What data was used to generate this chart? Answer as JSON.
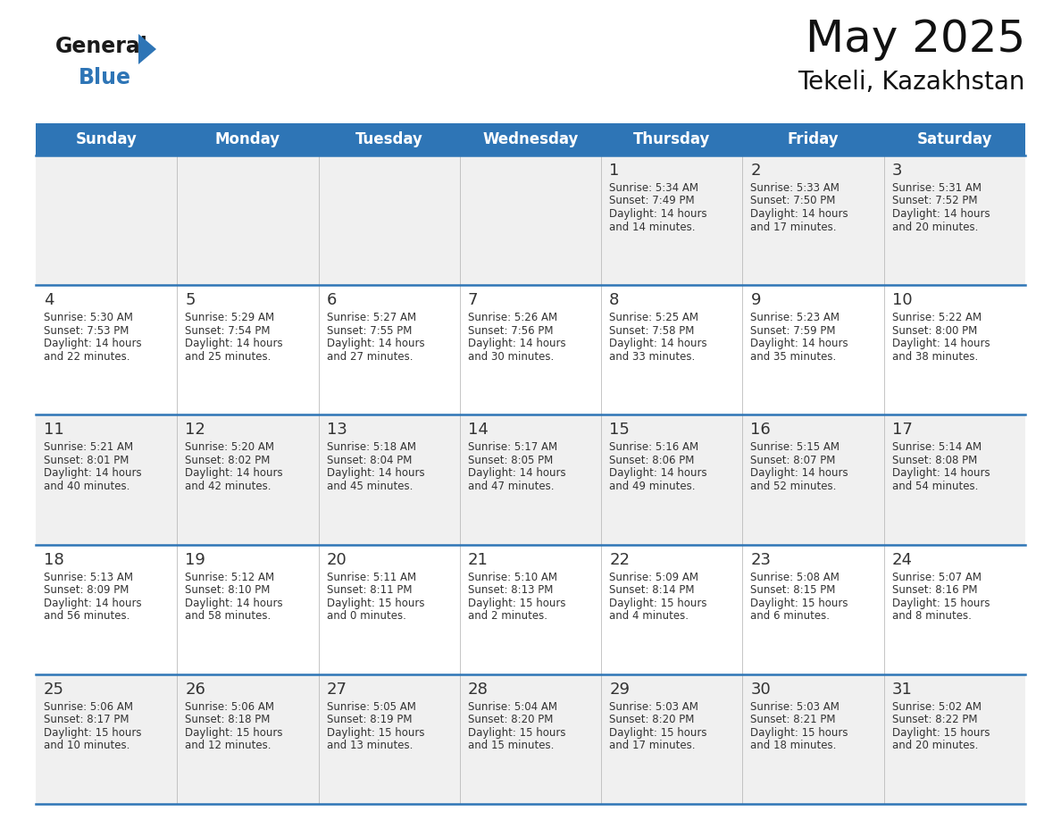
{
  "title": "May 2025",
  "subtitle": "Tekeli, Kazakhstan",
  "header_color": "#2E75B6",
  "header_text_color": "#FFFFFF",
  "days_of_week": [
    "Sunday",
    "Monday",
    "Tuesday",
    "Wednesday",
    "Thursday",
    "Friday",
    "Saturday"
  ],
  "background_color": "#FFFFFF",
  "row_alt_color": "#F0F0F0",
  "cell_text_color": "#333333",
  "border_color": "#2E75B6",
  "logo_general_color": "#1a1a1a",
  "logo_blue_color": "#2E75B6",
  "title_fontsize": 36,
  "subtitle_fontsize": 20,
  "header_day_fontsize": 12,
  "day_num_fontsize": 13,
  "cell_text_fontsize": 8.5,
  "calendar_data": [
    [
      null,
      null,
      null,
      null,
      {
        "day": 1,
        "sunrise": "5:34 AM",
        "sunset": "7:49 PM",
        "daylight_h": "14 hours",
        "daylight_m": "14 minutes"
      },
      {
        "day": 2,
        "sunrise": "5:33 AM",
        "sunset": "7:50 PM",
        "daylight_h": "14 hours",
        "daylight_m": "17 minutes"
      },
      {
        "day": 3,
        "sunrise": "5:31 AM",
        "sunset": "7:52 PM",
        "daylight_h": "14 hours",
        "daylight_m": "20 minutes"
      }
    ],
    [
      {
        "day": 4,
        "sunrise": "5:30 AM",
        "sunset": "7:53 PM",
        "daylight_h": "14 hours",
        "daylight_m": "22 minutes"
      },
      {
        "day": 5,
        "sunrise": "5:29 AM",
        "sunset": "7:54 PM",
        "daylight_h": "14 hours",
        "daylight_m": "25 minutes"
      },
      {
        "day": 6,
        "sunrise": "5:27 AM",
        "sunset": "7:55 PM",
        "daylight_h": "14 hours",
        "daylight_m": "27 minutes"
      },
      {
        "day": 7,
        "sunrise": "5:26 AM",
        "sunset": "7:56 PM",
        "daylight_h": "14 hours",
        "daylight_m": "30 minutes"
      },
      {
        "day": 8,
        "sunrise": "5:25 AM",
        "sunset": "7:58 PM",
        "daylight_h": "14 hours",
        "daylight_m": "33 minutes"
      },
      {
        "day": 9,
        "sunrise": "5:23 AM",
        "sunset": "7:59 PM",
        "daylight_h": "14 hours",
        "daylight_m": "35 minutes"
      },
      {
        "day": 10,
        "sunrise": "5:22 AM",
        "sunset": "8:00 PM",
        "daylight_h": "14 hours",
        "daylight_m": "38 minutes"
      }
    ],
    [
      {
        "day": 11,
        "sunrise": "5:21 AM",
        "sunset": "8:01 PM",
        "daylight_h": "14 hours",
        "daylight_m": "40 minutes"
      },
      {
        "day": 12,
        "sunrise": "5:20 AM",
        "sunset": "8:02 PM",
        "daylight_h": "14 hours",
        "daylight_m": "42 minutes"
      },
      {
        "day": 13,
        "sunrise": "5:18 AM",
        "sunset": "8:04 PM",
        "daylight_h": "14 hours",
        "daylight_m": "45 minutes"
      },
      {
        "day": 14,
        "sunrise": "5:17 AM",
        "sunset": "8:05 PM",
        "daylight_h": "14 hours",
        "daylight_m": "47 minutes"
      },
      {
        "day": 15,
        "sunrise": "5:16 AM",
        "sunset": "8:06 PM",
        "daylight_h": "14 hours",
        "daylight_m": "49 minutes"
      },
      {
        "day": 16,
        "sunrise": "5:15 AM",
        "sunset": "8:07 PM",
        "daylight_h": "14 hours",
        "daylight_m": "52 minutes"
      },
      {
        "day": 17,
        "sunrise": "5:14 AM",
        "sunset": "8:08 PM",
        "daylight_h": "14 hours",
        "daylight_m": "54 minutes"
      }
    ],
    [
      {
        "day": 18,
        "sunrise": "5:13 AM",
        "sunset": "8:09 PM",
        "daylight_h": "14 hours",
        "daylight_m": "56 minutes"
      },
      {
        "day": 19,
        "sunrise": "5:12 AM",
        "sunset": "8:10 PM",
        "daylight_h": "14 hours",
        "daylight_m": "58 minutes"
      },
      {
        "day": 20,
        "sunrise": "5:11 AM",
        "sunset": "8:11 PM",
        "daylight_h": "15 hours",
        "daylight_m": "0 minutes"
      },
      {
        "day": 21,
        "sunrise": "5:10 AM",
        "sunset": "8:13 PM",
        "daylight_h": "15 hours",
        "daylight_m": "2 minutes"
      },
      {
        "day": 22,
        "sunrise": "5:09 AM",
        "sunset": "8:14 PM",
        "daylight_h": "15 hours",
        "daylight_m": "4 minutes"
      },
      {
        "day": 23,
        "sunrise": "5:08 AM",
        "sunset": "8:15 PM",
        "daylight_h": "15 hours",
        "daylight_m": "6 minutes"
      },
      {
        "day": 24,
        "sunrise": "5:07 AM",
        "sunset": "8:16 PM",
        "daylight_h": "15 hours",
        "daylight_m": "8 minutes"
      }
    ],
    [
      {
        "day": 25,
        "sunrise": "5:06 AM",
        "sunset": "8:17 PM",
        "daylight_h": "15 hours",
        "daylight_m": "10 minutes"
      },
      {
        "day": 26,
        "sunrise": "5:06 AM",
        "sunset": "8:18 PM",
        "daylight_h": "15 hours",
        "daylight_m": "12 minutes"
      },
      {
        "day": 27,
        "sunrise": "5:05 AM",
        "sunset": "8:19 PM",
        "daylight_h": "15 hours",
        "daylight_m": "13 minutes"
      },
      {
        "day": 28,
        "sunrise": "5:04 AM",
        "sunset": "8:20 PM",
        "daylight_h": "15 hours",
        "daylight_m": "15 minutes"
      },
      {
        "day": 29,
        "sunrise": "5:03 AM",
        "sunset": "8:20 PM",
        "daylight_h": "15 hours",
        "daylight_m": "17 minutes"
      },
      {
        "day": 30,
        "sunrise": "5:03 AM",
        "sunset": "8:21 PM",
        "daylight_h": "15 hours",
        "daylight_m": "18 minutes"
      },
      {
        "day": 31,
        "sunrise": "5:02 AM",
        "sunset": "8:22 PM",
        "daylight_h": "15 hours",
        "daylight_m": "20 minutes"
      }
    ]
  ]
}
